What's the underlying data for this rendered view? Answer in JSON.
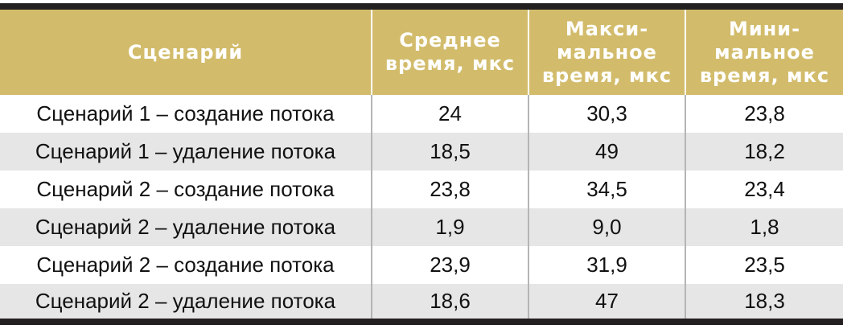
{
  "table": {
    "header": [
      "Сценарий",
      "Среднее\nвремя, мкс",
      "Макси-\nмальное\nвремя, мкс",
      "Мини-\nмальное\nвремя, мкс"
    ],
    "rows": [
      [
        "Сценарий 1 – создание потока",
        "24",
        "30,3",
        "23,8"
      ],
      [
        "Сценарий 1 – удаление потока",
        "18,5",
        "49",
        "18,2"
      ],
      [
        "Сценарий 2 – создание потока",
        "23,8",
        "34,5",
        "23,4"
      ],
      [
        "Сценарий 2 – удаление потока",
        "1,9",
        "9,0",
        "1,8"
      ],
      [
        "Сценарий 2 – создание потока",
        "23,9",
        "31,9",
        "23,5"
      ],
      [
        "Сценарий 2 – удаление потока",
        "18,6",
        "47",
        "18,3"
      ]
    ]
  }
}
